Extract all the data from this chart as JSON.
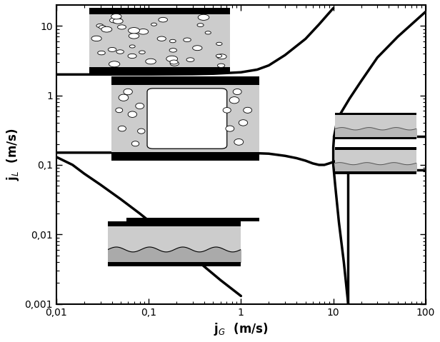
{
  "xlim": [
    0.01,
    100
  ],
  "ylim": [
    0.001,
    20
  ],
  "xlabel": "j$_G$  (m/s)",
  "ylabel": "j$_{L}$  (m/s)",
  "line_color": "#000000",
  "linewidth": 2.5,
  "curve_A_jG": [
    0.01,
    0.05,
    0.1,
    0.3,
    0.5,
    1.0,
    1.5,
    2.0,
    3.0,
    5.0,
    7.0,
    10.0
  ],
  "curve_A_jL": [
    2.0,
    2.0,
    2.0,
    2.02,
    2.05,
    2.15,
    2.35,
    2.7,
    3.8,
    6.5,
    10.5,
    18.0
  ],
  "curve_B_jG": [
    0.01,
    0.1,
    0.5,
    1.0,
    2.0,
    3.0,
    4.0,
    5.0,
    6.0,
    7.0,
    8.0,
    9.0,
    10.0,
    11.0,
    12.0,
    13.0,
    14.0
  ],
  "curve_B_jL": [
    0.15,
    0.15,
    0.15,
    0.15,
    0.145,
    0.135,
    0.125,
    0.115,
    0.105,
    0.1,
    0.1,
    0.105,
    0.11,
    0.115,
    0.12,
    0.125,
    0.13
  ],
  "curve_C_jG": [
    0.01,
    0.015,
    0.02,
    0.03,
    0.05,
    0.08,
    0.12,
    0.2,
    0.35,
    0.6,
    1.0
  ],
  "curve_C_jL": [
    0.13,
    0.1,
    0.075,
    0.052,
    0.032,
    0.02,
    0.013,
    0.008,
    0.004,
    0.0022,
    0.0013
  ],
  "curve_E_jG": [
    14.5,
    13.0,
    11.5,
    10.5,
    10.0,
    10.0,
    10.2,
    10.8,
    12.0,
    15.0,
    20.0,
    30.0,
    50.0,
    100.0
  ],
  "curve_E_jL": [
    0.001,
    0.004,
    0.015,
    0.05,
    0.1,
    0.18,
    0.26,
    0.38,
    0.55,
    0.9,
    1.6,
    3.5,
    7.0,
    16.0
  ],
  "vert_jG": [
    14.5,
    14.5
  ],
  "vert_jL": [
    0.001,
    0.085
  ],
  "horiz_low_jG": [
    14.5,
    100
  ],
  "horiz_low_jL": [
    0.085,
    0.085
  ],
  "horiz_high_jG": [
    10.0,
    100
  ],
  "horiz_high_jL": [
    0.26,
    0.26
  ],
  "tick_x": {
    "0.01": "0,01",
    "0.1": "0,1",
    "1": "1",
    "10": "10",
    "100": "100"
  },
  "tick_y": {
    "0.001": "0,001",
    "0.01": "0,01",
    "0.1": "0,1",
    "1": "1",
    "10": "10"
  }
}
